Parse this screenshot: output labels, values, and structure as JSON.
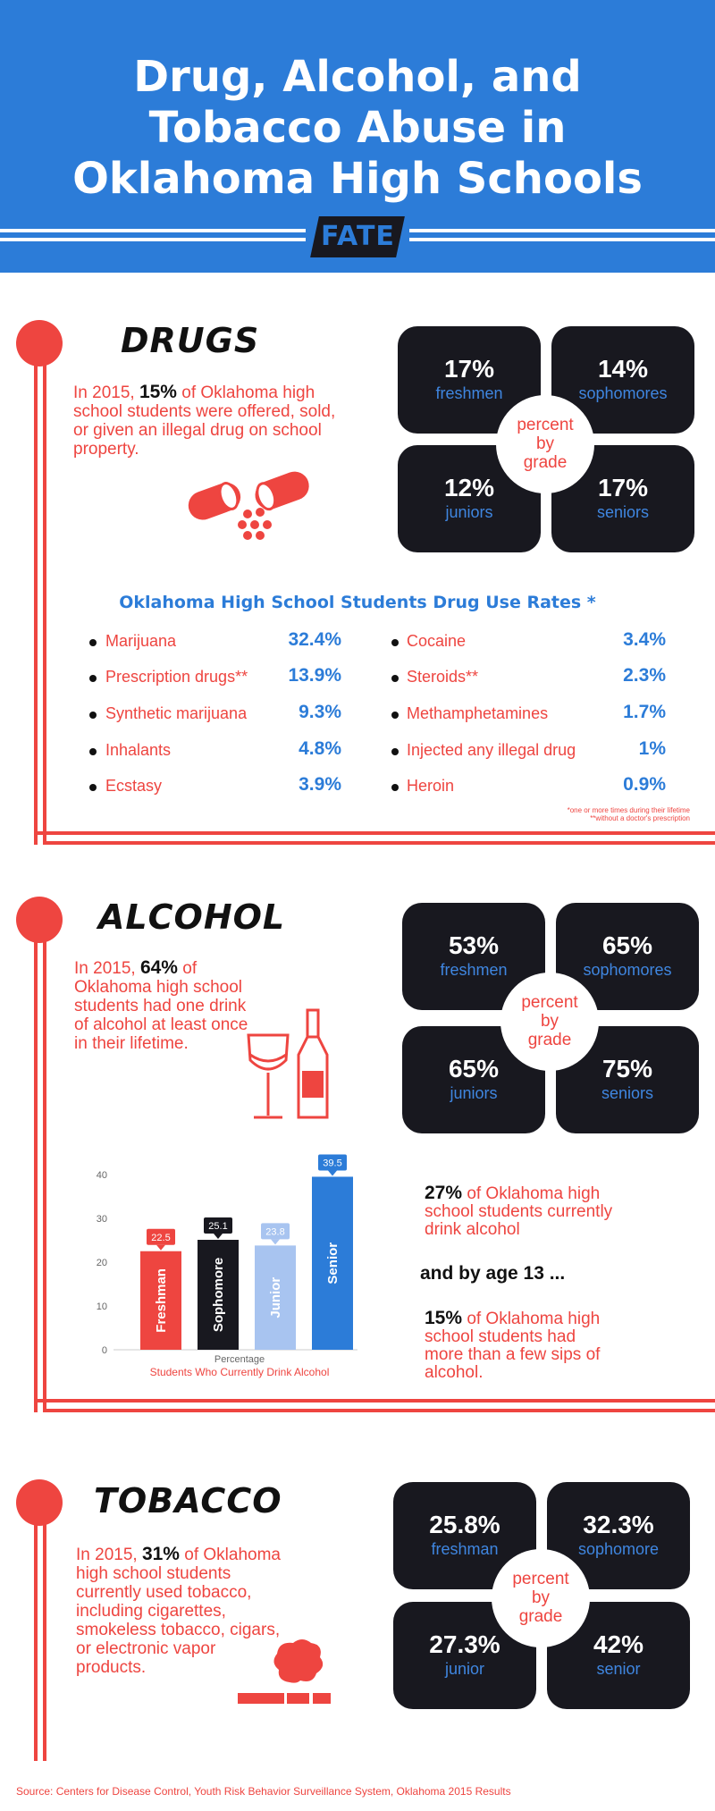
{
  "header": {
    "title_line1": "Drug, Alcohol, and",
    "title_line2": "Tobacco Abuse in",
    "title_line3": "Oklahoma High Schools",
    "logo": "FATE",
    "color": "#2c7cd8"
  },
  "drugs": {
    "title": "DRUGS",
    "intro_pre": "In 2015,",
    "intro_pct": "15%",
    "intro_post": "of Oklahoma high school students were offered, sold, or given an illegal drug on school property.",
    "grades": [
      {
        "pct": "17%",
        "label": "freshmen"
      },
      {
        "pct": "14%",
        "label": "sophomores"
      },
      {
        "pct": "12%",
        "label": "juniors"
      },
      {
        "pct": "17%",
        "label": "seniors"
      }
    ],
    "circle": [
      "percent",
      "by",
      "grade"
    ],
    "rates_title": "Oklahoma High School Students Drug Use Rates *",
    "rates_left": [
      {
        "name": "Marijuana",
        "value": "32.4%"
      },
      {
        "name": "Prescription drugs**",
        "value": "13.9%"
      },
      {
        "name": "Synthetic marijuana",
        "value": "9.3%"
      },
      {
        "name": "Inhalants",
        "value": "4.8%"
      },
      {
        "name": "Ecstasy",
        "value": "3.9%"
      }
    ],
    "rates_right": [
      {
        "name": "Cocaine",
        "value": "3.4%"
      },
      {
        "name": "Steroids**",
        "value": "2.3%"
      },
      {
        "name": "Methamphetamines",
        "value": "1.7%"
      },
      {
        "name": "Injected any illegal drug",
        "value": "1%"
      },
      {
        "name": "Heroin",
        "value": "0.9%"
      }
    ],
    "footnote1": "*one or more times during their lifetime",
    "footnote2": "**without a doctor's prescription"
  },
  "alcohol": {
    "title": "ALCOHOL",
    "intro_pre": "In 2015,",
    "intro_pct": "64%",
    "intro_post": "of Oklahoma high school students had one drink of alcohol at least once in their lifetime.",
    "grades": [
      {
        "pct": "53%",
        "label": "freshmen"
      },
      {
        "pct": "65%",
        "label": "sophomores"
      },
      {
        "pct": "65%",
        "label": "juniors"
      },
      {
        "pct": "75%",
        "label": "seniors"
      }
    ],
    "circle": [
      "percent",
      "by",
      "grade"
    ],
    "stmt1_pct": "27%",
    "stmt1_text": "of Oklahoma high school students currently drink alcohol",
    "by_age": "and by age 13 ...",
    "stmt2_pct": "15%",
    "stmt2_text": "of Oklahoma high school students had more than a few sips of alcohol."
  },
  "chart_data": {
    "type": "bar",
    "categories": [
      "Freshman",
      "Sophomore",
      "Junior",
      "Senior"
    ],
    "values": [
      22.5,
      25.1,
      23.8,
      39.5
    ],
    "colors": [
      "#ee4540",
      "#18181f",
      "#a8c4f0",
      "#2c7cd8"
    ],
    "ylim": [
      0,
      40
    ],
    "yticks": [
      0,
      10,
      20,
      30,
      40
    ],
    "xlabel": "Percentage",
    "caption": "Students Who Currently Drink Alcohol",
    "grid": false
  },
  "tobacco": {
    "title": "TOBACCO",
    "intro_pre": "In 2015,",
    "intro_pct": "31%",
    "intro_post": "of Oklahoma high school students currently used tobacco, including cigarettes, smokeless tobacco, cigars, or electronic vapor products.",
    "grades": [
      {
        "pct": "25.8%",
        "label": "freshman"
      },
      {
        "pct": "32.3%",
        "label": "sophomore"
      },
      {
        "pct": "27.3%",
        "label": "junior"
      },
      {
        "pct": "42%",
        "label": "senior"
      }
    ],
    "circle": [
      "percent",
      "by",
      "grade"
    ]
  },
  "source": "Source: Centers for Disease Control, Youth Risk Behavior Surveillance System, Oklahoma 2015 Results",
  "accent_red": "#ee4540",
  "dark": "#18181f"
}
